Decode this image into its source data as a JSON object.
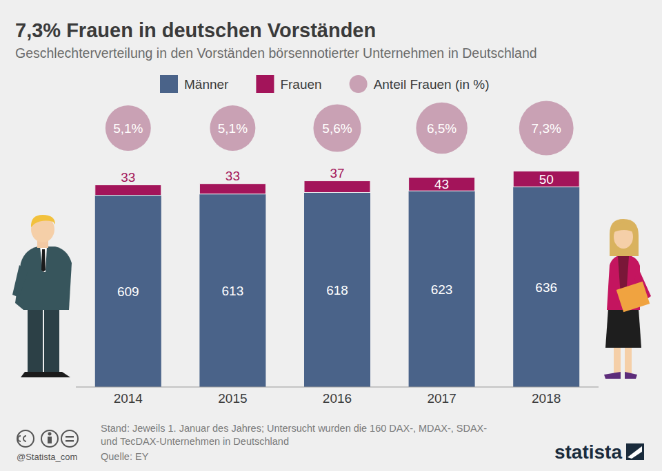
{
  "chart_data": {
    "type": "bar",
    "title": "7,3% Frauen in deutschen Vorständen",
    "subtitle": "Geschlechterverteilung in den Vorständen börsennotierter Unternehmen in Deutschland",
    "categories": [
      "2014",
      "2015",
      "2016",
      "2017",
      "2018"
    ],
    "series": [
      {
        "name": "Männer",
        "color": "#4a6389",
        "values": [
          609,
          613,
          618,
          623,
          636
        ]
      },
      {
        "name": "Frauen",
        "color": "#a3145a",
        "values": [
          33,
          33,
          37,
          43,
          50
        ]
      },
      {
        "name": "Anteil Frauen (in %)",
        "color": "#c9a1b4",
        "type": "bubble",
        "values": [
          5.1,
          5.1,
          5.6,
          6.5,
          7.3
        ],
        "value_labels": [
          "5,1%",
          "5,1%",
          "5,6%",
          "6,5%",
          "7,3%"
        ]
      }
    ],
    "stacked": true,
    "ylim": [
      0,
      700
    ],
    "tick_labels": "x",
    "data_labels": true,
    "legend": "top",
    "grid": false,
    "note": [
      "Stand: Jeweils 1. Januar des Jahres; Untersucht wurden die 160 DAX-, MDAX-, SDAX-",
      "und TecDAX-Unternehmen in Deutschland"
    ],
    "source": "Quelle: EY",
    "credit": "@Statista_com",
    "brand": "statista"
  }
}
